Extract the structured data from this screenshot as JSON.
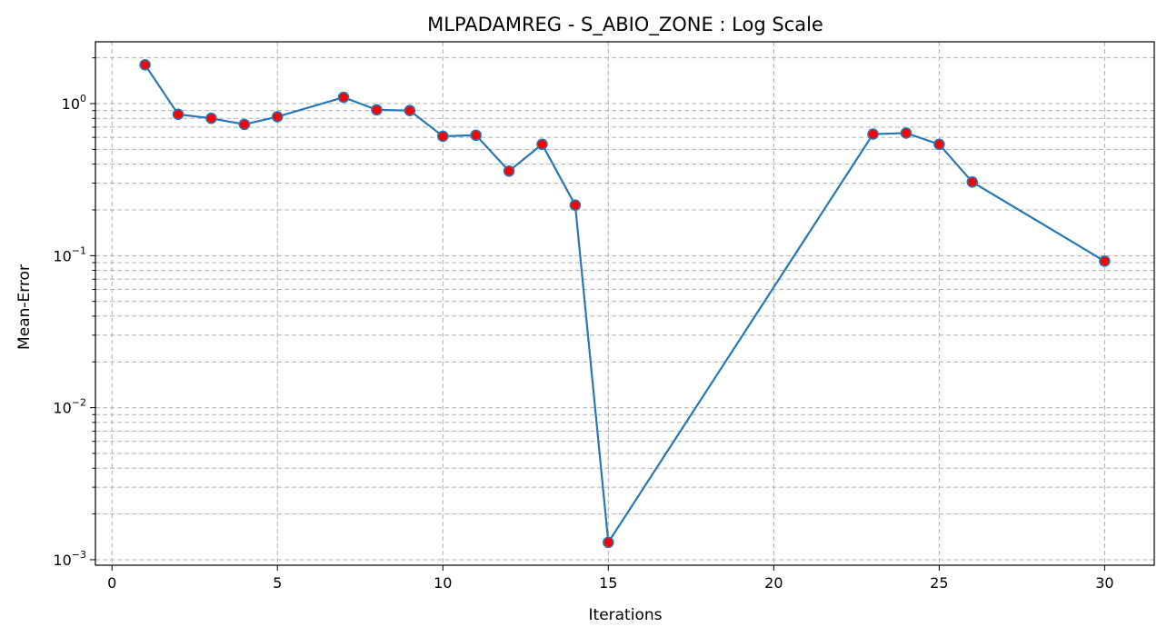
{
  "chart_data": {
    "type": "line",
    "title": "MLPADAMREG - S_ABIO_ZONE : Log Scale",
    "xlabel": "Iterations",
    "ylabel": "Mean-Error",
    "yscale": "log",
    "xlim": [
      -0.5,
      31.5
    ],
    "ylim": [
      0.00092,
      2.55
    ],
    "xticks": [
      0,
      5,
      10,
      15,
      20,
      25,
      30
    ],
    "yticks_major": [
      {
        "value": 0.001,
        "base": "10",
        "exp": "−3"
      },
      {
        "value": 0.01,
        "base": "10",
        "exp": "−2"
      },
      {
        "value": 0.1,
        "base": "10",
        "exp": "−1"
      },
      {
        "value": 1,
        "base": "10",
        "exp": "0"
      }
    ],
    "grid": true,
    "line_color": "#2878b5",
    "marker_face_color": "#ff0000",
    "marker_edge_color": "#2878b5",
    "grid_color": "#b0b0b0",
    "series": [
      {
        "x": [
          1,
          2,
          3,
          4,
          5,
          7,
          8,
          9,
          10,
          11,
          12,
          13,
          14,
          15,
          23,
          24,
          25,
          26,
          30
        ],
        "y": [
          1.8,
          0.85,
          0.8,
          0.73,
          0.82,
          1.1,
          0.91,
          0.9,
          0.61,
          0.62,
          0.36,
          0.54,
          0.215,
          0.0013,
          0.63,
          0.64,
          0.54,
          0.305,
          0.092
        ]
      }
    ]
  }
}
